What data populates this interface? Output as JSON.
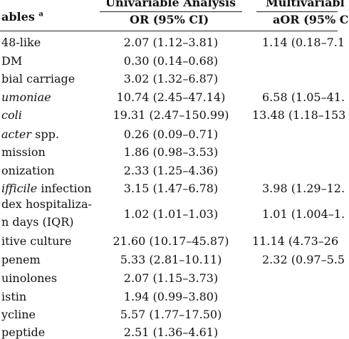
{
  "header": {
    "variables_label": "ables",
    "variables_superscript": "a",
    "univariable_title": "Univariable Analysis",
    "multivariable_title": "Multivariabl",
    "or_label": "OR (95% CI)",
    "aor_label": "aOR (95% C"
  },
  "rows": [
    {
      "variable": "48-like",
      "italic": "",
      "or": "2.07 (1.12–3.81)",
      "aor": "1.14 (0.18–7.1"
    },
    {
      "variable": "DM",
      "italic": "",
      "or": "0.30 (0.14–0.68)",
      "aor": ""
    },
    {
      "variable": "bial carriage",
      "italic": "",
      "or": "3.02 (1.32–6.87)",
      "aor": ""
    },
    {
      "variable": "",
      "italic": "umoniae",
      "or": "10.74 (2.45–47.14)",
      "aor": "6.58 (1.05–41."
    },
    {
      "variable": "",
      "italic": "coli",
      "or": "19.31 (2.47–150.99)",
      "aor": "13.48 (1.18–153"
    },
    {
      "variable": " spp.",
      "italic": "acter",
      "or": "0.26 (0.09–0.71)",
      "aor": ""
    },
    {
      "variable": "mission",
      "italic": "",
      "or": "1.86 (0.98–3.53)",
      "aor": ""
    },
    {
      "variable": "onization",
      "italic": "",
      "or": "2.33 (1.25–4.36)",
      "aor": ""
    },
    {
      "variable": " infection",
      "italic": "ifficile",
      "or": "3.15 (1.47–6.78)",
      "aor": "3.98 (1.29–12."
    },
    {
      "variable": "dex hospitaliza-",
      "variable_line2": "n days (IQR)",
      "italic": "",
      "or": "1.02 (1.01–1.03)",
      "aor": "1.01 (1.004–1."
    },
    {
      "variable": "itive culture",
      "italic": "",
      "or": "21.60 (10.17–45.87)",
      "aor": "11.14 (4.73–26"
    },
    {
      "variable": "penem",
      "italic": "",
      "or": "5.33 (2.81–10.11)",
      "aor": "2.32 (0.97–5.5"
    },
    {
      "variable": "uinolones",
      "italic": "",
      "or": "2.07 (1.15–3.73)",
      "aor": ""
    },
    {
      "variable": "istin",
      "italic": "",
      "or": "1.94 (0.99–3.80)",
      "aor": ""
    },
    {
      "variable": "ycline",
      "italic": "",
      "or": "5.57 (1.77–17.50)",
      "aor": ""
    },
    {
      "variable": "peptide",
      "italic": "",
      "or": "2.51 (1.36–4.61)",
      "aor": ""
    }
  ]
}
